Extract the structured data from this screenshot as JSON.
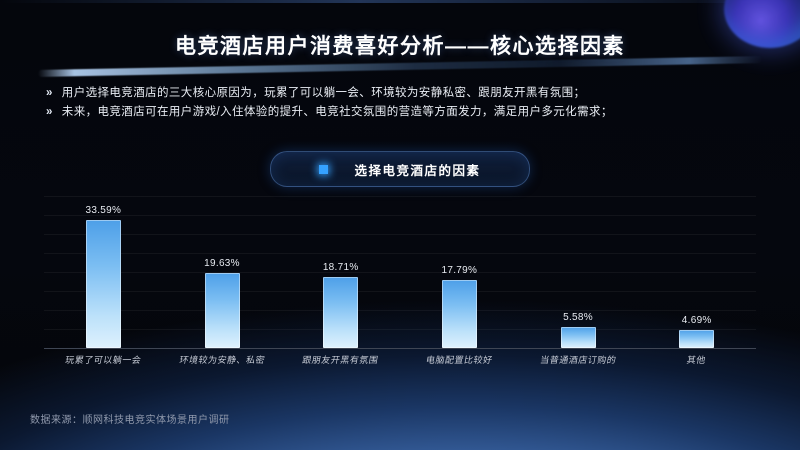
{
  "slide": {
    "title": "电竞酒店用户消费喜好分析——核心选择因素",
    "bullets": [
      {
        "marker": "»",
        "text": "用户选择电竞酒店的三大核心原因为，玩累了可以躺一会、环境较为安静私密、跟朋友开黑有氛围；"
      },
      {
        "marker": "»",
        "text": "未来，电竞酒店可在用户游戏/入住体验的提升、电竞社交氛围的营造等方面发力，满足用户多元化需求；"
      }
    ],
    "source": "数据来源：顺网科技电竞实体场景用户调研"
  },
  "chart_header": {
    "label": "选择电竞酒店的因素",
    "bullet_icon": "square-glow-icon"
  },
  "chart_data": {
    "type": "bar",
    "title": "选择电竞酒店的因素",
    "categories": [
      "玩累了可以躺一会",
      "环境较为安静、私密",
      "跟朋友开黑有氛围",
      "电脑配置比较好",
      "当普通酒店订购的",
      "其他"
    ],
    "values": [
      33.59,
      19.63,
      18.71,
      17.79,
      5.58,
      4.69
    ],
    "value_labels": [
      "33.59%",
      "19.63%",
      "18.71%",
      "17.79%",
      "5.58%",
      "4.69%"
    ],
    "xlabel": "",
    "ylabel": "",
    "ylim": [
      0,
      40
    ],
    "grid": true,
    "legend": false,
    "bar_color_top": "#4d9fe8",
    "bar_color_bottom": "#def1fd"
  },
  "colors": {
    "background": "#05070e",
    "accent_blue": "#35a2ff",
    "horizon_glow": "#7b9dd6",
    "text_primary": "#ffffff",
    "text_secondary": "#c7ccd6",
    "axis_line": "#3f4654"
  }
}
